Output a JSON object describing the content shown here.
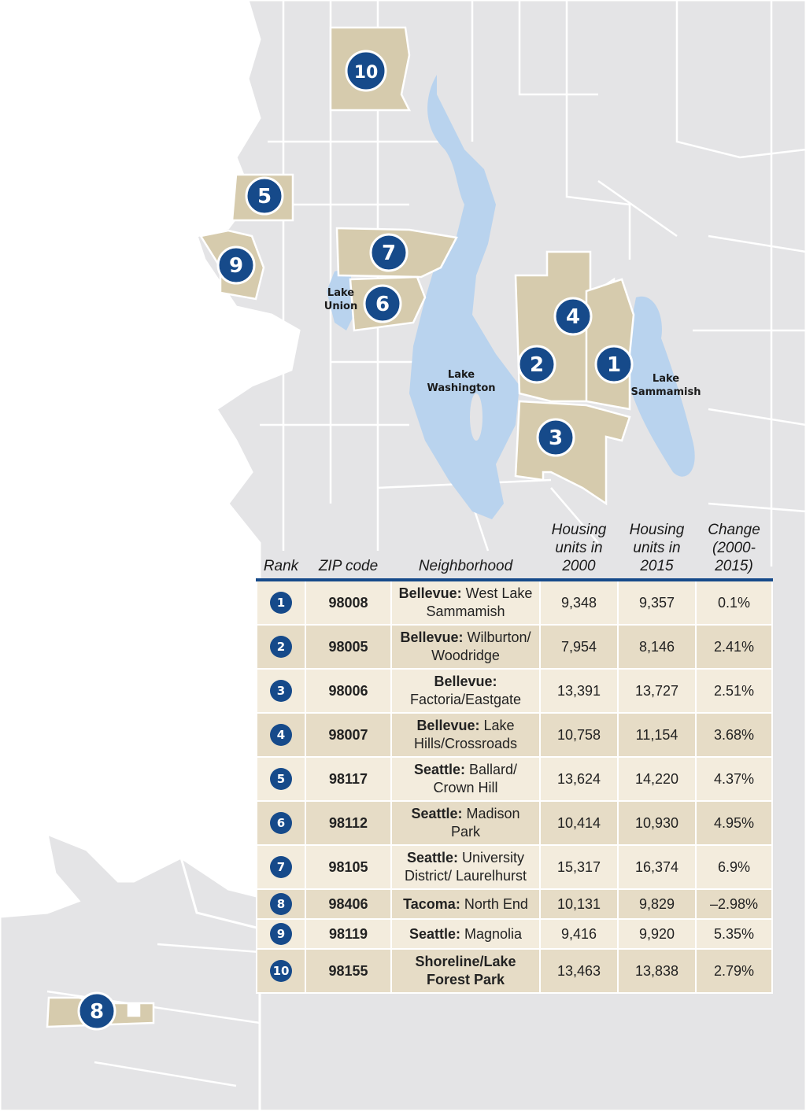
{
  "colors": {
    "land": "#e4e4e6",
    "water": "#b9d3ee",
    "highlight": "#d6cbad",
    "marker": "#164a8a"
  },
  "lakes": [
    {
      "line1": "Lake",
      "line2": "Union"
    },
    {
      "line1": "Lake",
      "line2": "Washington"
    },
    {
      "line1": "Lake",
      "line2": "Sammamish"
    }
  ],
  "markers": [
    "1",
    "2",
    "3",
    "4",
    "5",
    "6",
    "7",
    "8",
    "9",
    "10"
  ],
  "table": {
    "headers": {
      "rank": "Rank",
      "zip": "ZIP code",
      "neighborhood": "Neighborhood",
      "h2000_1": "Housing",
      "h2000_2": "units in",
      "h2000_3": "2000",
      "h2015_1": "Housing",
      "h2015_2": "units in",
      "h2015_3": "2015",
      "chg_1": "Change",
      "chg_2": "(2000-",
      "chg_3": "2015)"
    },
    "rows": [
      {
        "rank": "1",
        "zip": "98008",
        "city": "Bellevue:",
        "area": "West Lake Sammamish",
        "u2000": "9,348",
        "u2015": "9,357",
        "change": "0.1%"
      },
      {
        "rank": "2",
        "zip": "98005",
        "city": "Bellevue:",
        "area": "Wilburton/ Woodridge",
        "u2000": "7,954",
        "u2015": "8,146",
        "change": "2.41%"
      },
      {
        "rank": "3",
        "zip": "98006",
        "city": "Bellevue:",
        "area": "Factoria/Eastgate",
        "u2000": "13,391",
        "u2015": "13,727",
        "change": "2.51%"
      },
      {
        "rank": "4",
        "zip": "98007",
        "city": "Bellevue:",
        "area": "Lake Hills/Crossroads",
        "u2000": "10,758",
        "u2015": "11,154",
        "change": "3.68%"
      },
      {
        "rank": "5",
        "zip": "98117",
        "city": "Seattle:",
        "area": "Ballard/ Crown Hill",
        "u2000": "13,624",
        "u2015": "14,220",
        "change": "4.37%"
      },
      {
        "rank": "6",
        "zip": "98112",
        "city": "Seattle:",
        "area": "Madison Park",
        "u2000": "10,414",
        "u2015": "10,930",
        "change": "4.95%"
      },
      {
        "rank": "7",
        "zip": "98105",
        "city": "Seattle:",
        "area": "University District/ Laurelhurst",
        "u2000": "15,317",
        "u2015": "16,374",
        "change": "6.9%"
      },
      {
        "rank": "8",
        "zip": "98406",
        "city": "Tacoma:",
        "area": "North End",
        "u2000": "10,131",
        "u2015": "9,829",
        "change": "–2.98%"
      },
      {
        "rank": "9",
        "zip": "98119",
        "city": "Seattle:",
        "area": "Magnolia",
        "u2000": "9,416",
        "u2015": "9,920",
        "change": "5.35%"
      },
      {
        "rank": "10",
        "zip": "98155",
        "city": "Shoreline/Lake Forest Park",
        "area": "",
        "u2000": "13,463",
        "u2015": "13,838",
        "change": "2.79%"
      }
    ]
  }
}
